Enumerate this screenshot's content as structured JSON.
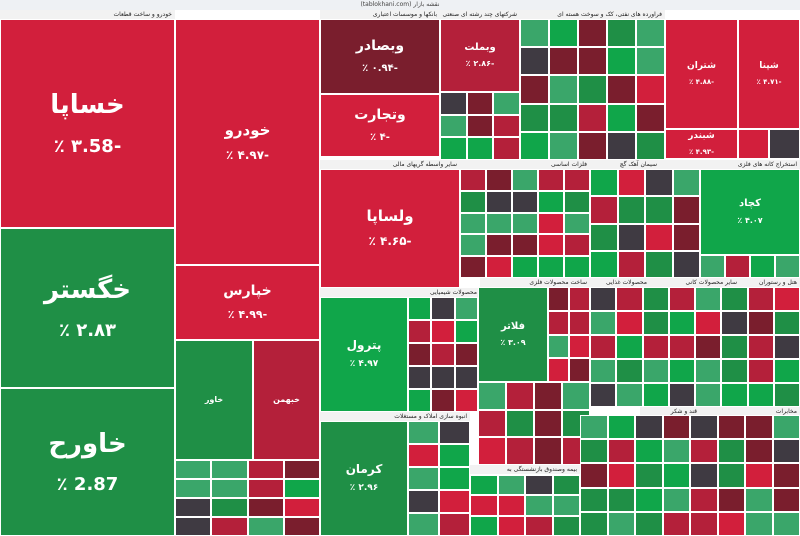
{
  "header": {
    "url": "(tablokhani.com) نقشه بازار"
  },
  "colors": {
    "up_strong": "#10a64a",
    "up": "#1f8f46",
    "up_soft": "#3aa66a",
    "down_strong": "#d21f3c",
    "down": "#b4203a",
    "down_dark": "#7a1e2d",
    "neutral_dark": "#3f3a42"
  },
  "chart_data": {
    "type": "treemap",
    "sectors": [
      "خودرو و ساخت قطعات",
      "بانکها و موسسات اعتباری",
      "شرکتهای چند رشته ای صنعتی",
      "فراورده های نفتی، کک و سوخت هسته ای",
      "سایر واسطه گریهای مالی",
      "فلزات اساسی",
      "سیمان آهک گچ",
      "استخراج کانه های فلزی",
      "محصولات شیمیایی",
      "ساخت محصولات فلزی",
      "محصولات غذایی",
      "سایر محصولات کانی",
      "هتل و رستوران",
      "فعالیتهای کمکی به نهادهای مالی",
      "حمل و نقل انبارداری",
      "ماشین آلات و تجهیزات",
      "انبوه سازی املاک و مستغلات",
      "بیمه وصندوق بازنشستگی به",
      "قند و شکر",
      "محصولات کاغذی",
      "مخابرات"
    ],
    "tiles": [
      {
        "symbol": "خساپا",
        "change_text": "-۳.58 ٪",
        "change": -3.58,
        "sector": "خودرو و ساخت قطعات"
      },
      {
        "symbol": "خگستر",
        "change_text": "۲.۸۳ ٪",
        "change": 2.83,
        "sector": "خودرو و ساخت قطعات"
      },
      {
        "symbol": "خاورح",
        "change_text": "2.87 ٪",
        "change": 2.87,
        "sector": "خودرو و ساخت قطعات"
      },
      {
        "symbol": "خودرو",
        "change_text": "-۴.۹۷ ٪",
        "change": -4.97,
        "sector": "خودرو و ساخت قطعات"
      },
      {
        "symbol": "خپارس",
        "change_text": "-۴.۹۹ ٪",
        "change": -4.99,
        "sector": "خودرو و ساخت قطعات"
      },
      {
        "symbol": "خاور",
        "change_text": "",
        "change": 2.9,
        "sector": "خودرو و ساخت قطعات"
      },
      {
        "symbol": "خبهمن",
        "change_text": "",
        "change": -2.9,
        "sector": "خودرو و ساخت قطعات"
      },
      {
        "symbol": "وبصادر",
        "change_text": "-۰.۹۴ ٪",
        "change": -0.94,
        "sector": "بانکها و موسسات اعتباری"
      },
      {
        "symbol": "وتجارت",
        "change_text": "-۴ ٪",
        "change": -4.0,
        "sector": "بانکها و موسسات اعتباری"
      },
      {
        "symbol": "وبملت",
        "change_text": "-۲.۸۶ ٪",
        "change": -2.86,
        "sector": "بانکها و موسسات اعتباری"
      },
      {
        "symbol": "شپنا",
        "change_text": "-۴.۷۱ ٪",
        "change": -4.71,
        "sector": "فراورده های نفتی، کک و سوخت هسته ای"
      },
      {
        "symbol": "شتران",
        "change_text": "-۴.۸۸ ٪",
        "change": -4.88,
        "sector": "فراورده های نفتی، کک و سوخت هسته ای"
      },
      {
        "symbol": "شبندر",
        "change_text": "-۴.۹۳ ٪",
        "change": -4.93,
        "sector": "فراورده های نفتی، کک و سوخت هسته ای"
      },
      {
        "symbol": "ولساپا",
        "change_text": "-۴.۶۵ ٪",
        "change": -4.65,
        "sector": "سایر واسطه گریهای مالی"
      },
      {
        "symbol": "کچاد",
        "change_text": "۴.۰۷ ٪",
        "change": 4.07,
        "sector": "استخراج کانه های فلزی"
      },
      {
        "symbol": "پترول",
        "change_text": "۴.۹۷ ٪",
        "change": 4.97,
        "sector": "محصولات شیمیایی"
      },
      {
        "symbol": "فلاتر",
        "change_text": "۳.۰۹ ٪",
        "change": 3.09,
        "sector": "ساخت محصولات فلزی"
      },
      {
        "symbol": "کرمان",
        "change_text": "۲.۹۶ ٪",
        "change": 2.96,
        "sector": "انبوه سازی املاک و مستغلات"
      }
    ]
  }
}
